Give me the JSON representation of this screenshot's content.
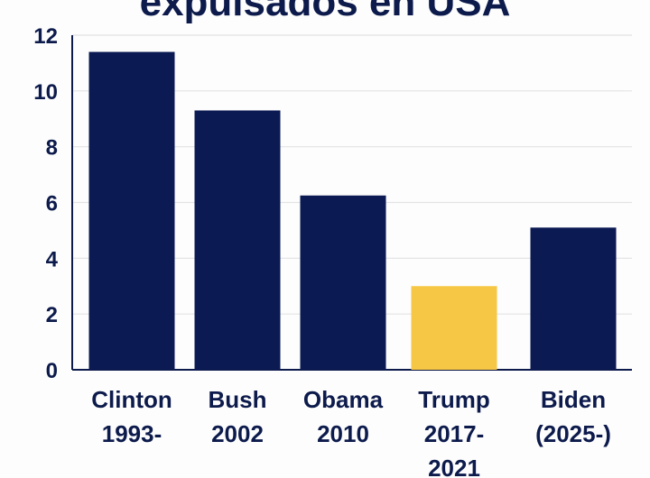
{
  "chart_data": {
    "type": "bar",
    "title": "expulsados en USA",
    "categories": [
      "Clinton\n1993-",
      "Bush\n2002",
      "Obama\n2010",
      "Trump\n2017-\n2021",
      "Biden\n(2025-)"
    ],
    "values": [
      11.4,
      9.3,
      6.25,
      3.0,
      5.1
    ],
    "colors": [
      "#0b1a52",
      "#0b1a52",
      "#0b1a52",
      "#f6c744",
      "#0b1a52"
    ],
    "ylim": [
      0,
      12
    ],
    "yticks": [
      "0",
      "2",
      "4",
      "6",
      "8",
      "10",
      "12"
    ],
    "grid": true,
    "xlabel": "",
    "ylabel": ""
  }
}
